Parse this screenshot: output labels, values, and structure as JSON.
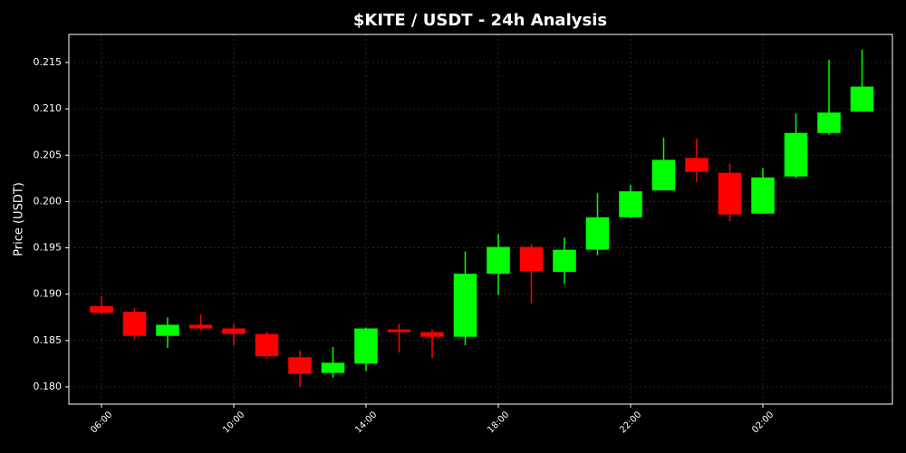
{
  "chart_data": {
    "type": "candlestick",
    "title": "$KITE / USDT - 24h Analysis",
    "y_label": "Price (USDT)",
    "categories": [
      "06:00",
      null,
      null,
      null,
      "10:00",
      null,
      null,
      null,
      "14:00",
      null,
      null,
      null,
      "18:00",
      null,
      null,
      null,
      "22:00",
      null,
      null,
      null,
      "02:00",
      null,
      null,
      null
    ],
    "open": [
      0.1887,
      0.1881,
      0.1855,
      0.1867,
      0.1863,
      0.1857,
      0.1832,
      0.1815,
      0.1825,
      0.1862,
      0.1859,
      0.1854,
      0.1922,
      0.1951,
      0.1924,
      0.1948,
      0.1983,
      0.2012,
      0.2047,
      0.2031,
      0.1987,
      0.2027,
      0.2074,
      0.2097
    ],
    "high": [
      0.1898,
      0.1885,
      0.1875,
      0.1878,
      0.1868,
      0.186,
      0.1839,
      0.1843,
      0.1864,
      0.1868,
      0.1862,
      0.1946,
      0.1965,
      0.1954,
      0.1961,
      0.2009,
      0.2018,
      0.2069,
      0.2068,
      0.2041,
      0.2036,
      0.2095,
      0.2153,
      0.2164
    ],
    "low": [
      0.1878,
      0.1851,
      0.1842,
      0.1861,
      0.1844,
      0.183,
      0.18,
      0.181,
      0.1817,
      0.1837,
      0.1831,
      0.1845,
      0.1899,
      0.189,
      0.1911,
      0.1942,
      0.1982,
      0.2012,
      0.2021,
      0.1979,
      0.1987,
      0.2025,
      0.2072,
      0.2097
    ],
    "close": [
      0.188,
      0.1855,
      0.1867,
      0.1863,
      0.1857,
      0.1833,
      0.1814,
      0.1826,
      0.1863,
      0.1859,
      0.1854,
      0.1922,
      0.1951,
      0.1925,
      0.1948,
      0.1983,
      0.2011,
      0.2045,
      0.2032,
      0.1986,
      0.2026,
      0.2074,
      0.2096,
      0.2124
    ],
    "up_color": "#00ff00",
    "down_color": "#ff0000",
    "ylim": [
      0.17814,
      0.21803
    ],
    "yticks": [
      {
        "value": 0.18,
        "label": "0.180"
      },
      0.185,
      {
        "value": 0.19,
        "label": "0.190"
      },
      0.195,
      {
        "value": 0.2,
        "label": "0.200"
      },
      0.205,
      {
        "value": 0.21,
        "label": "0.210"
      },
      0.215
    ],
    "grid": true
  }
}
